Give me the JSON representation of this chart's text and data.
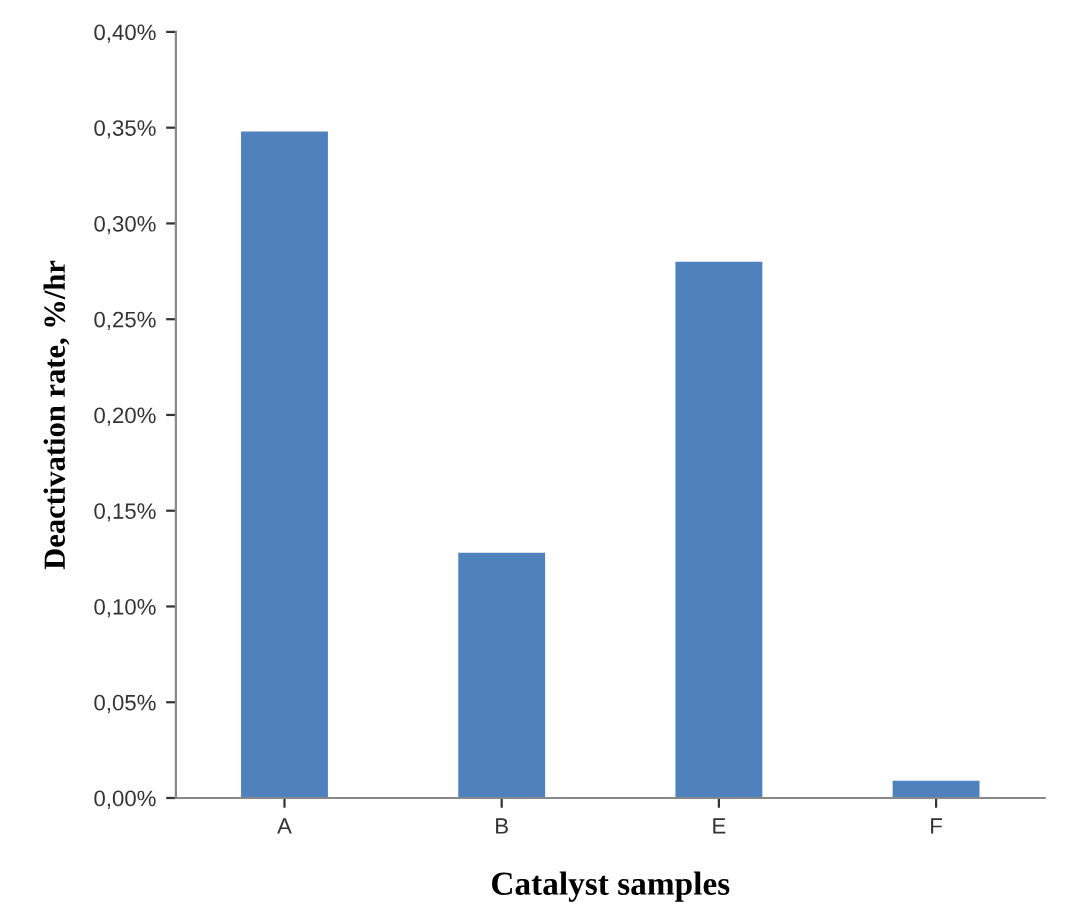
{
  "chart_data": {
    "type": "bar",
    "xlabel": "Catalyst samples",
    "ylabel": "Deactivation rate, %/hr",
    "categories": [
      "A",
      "B",
      "E",
      "F"
    ],
    "values": [
      0.348,
      0.128,
      0.28,
      0.009
    ],
    "color": "#4f81bd",
    "ylim": [
      0,
      0.4
    ],
    "yticks": [
      {
        "value": 0,
        "label": "0,00%"
      },
      {
        "value": 0.05,
        "label": "0,05%"
      },
      {
        "value": 0.1,
        "label": "0,10%"
      },
      {
        "value": 0.15,
        "label": "0,15%"
      },
      {
        "value": 0.2,
        "label": "0,20%"
      },
      {
        "value": 0.25,
        "label": "0,25%"
      },
      {
        "value": 0.3,
        "label": "0,30%"
      },
      {
        "value": 0.35,
        "label": "0,35%"
      },
      {
        "value": 0.4,
        "label": "0,40%"
      }
    ],
    "grid": false,
    "legend": false
  }
}
